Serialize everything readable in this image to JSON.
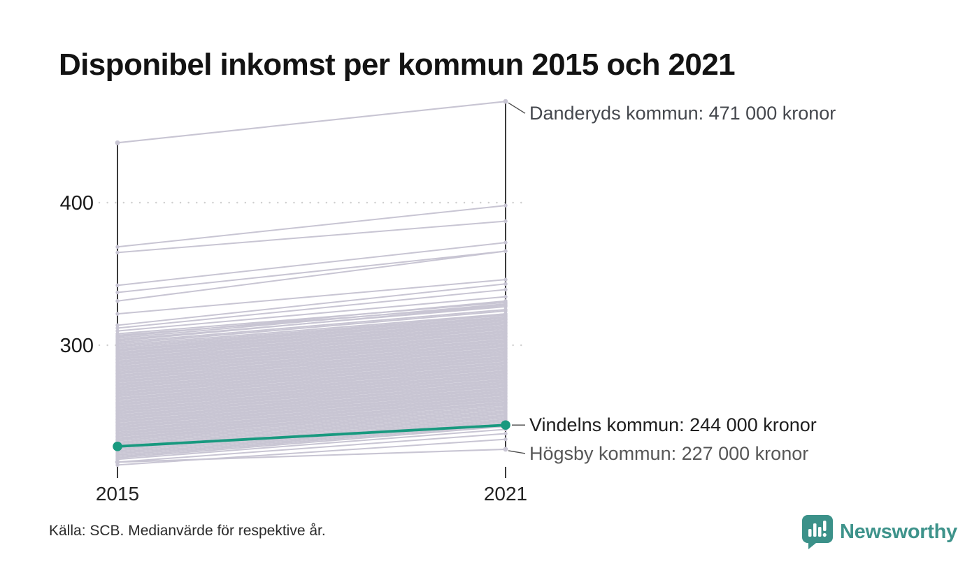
{
  "title": "Disponibel inkomst per kommun 2015 och 2021",
  "source": "Källa: SCB. Medianvärde för respektive år.",
  "logo": {
    "text": "Newsworthy",
    "icon": "newsworthy-bubble-bar-chart-icon",
    "color": "#3e938b"
  },
  "chart_data": {
    "type": "slope",
    "title": "Disponibel inkomst per kommun 2015 och 2021",
    "x_categories": [
      "2015",
      "2021"
    ],
    "y_gridlines": [
      {
        "value": 400,
        "label": "400"
      },
      {
        "value": 300,
        "label": "300"
      }
    ],
    "grid": "dotted-horizontal",
    "legend": "none",
    "colors": {
      "muted_line": "#c8c5d3",
      "highlight": "#18997f",
      "grid": "#cfcfcf",
      "axis": "#1a1a1a",
      "leader": "#4d4d4d"
    },
    "annotated_lines": [
      {
        "name": "danderyd",
        "label": "Danderyds kommun: 471 000 kronor",
        "values": [
          442,
          471
        ],
        "highlight": false,
        "color": "#c8c5d3",
        "label_color": "#45484e"
      },
      {
        "name": "vindeln",
        "label": "Vindelns kommun: 244 000 kronor",
        "values": [
          229,
          244
        ],
        "highlight": true,
        "color": "#18997f",
        "label_color": "#1f1f1f"
      },
      {
        "name": "hogsby",
        "label": "Högsby kommun: 227 000 kronor",
        "values": [
          218,
          227
        ],
        "highlight": false,
        "color": "#c8c5d3",
        "label_color": "#575757"
      }
    ],
    "background_lines": [
      [
        369,
        398
      ],
      [
        365,
        387
      ],
      [
        342,
        372
      ],
      [
        337,
        366
      ],
      [
        331,
        366
      ],
      [
        322,
        346
      ],
      [
        314,
        343
      ],
      [
        312,
        339
      ],
      [
        310,
        334
      ],
      [
        308,
        330
      ],
      [
        307,
        328
      ],
      [
        306,
        331
      ],
      [
        305,
        329
      ],
      [
        304,
        327
      ],
      [
        303,
        328
      ],
      [
        302,
        325
      ],
      [
        301,
        324
      ],
      [
        300,
        322
      ],
      [
        299,
        321
      ],
      [
        298,
        320
      ],
      [
        297,
        319
      ],
      [
        296,
        318
      ],
      [
        296,
        322
      ],
      [
        295,
        317
      ],
      [
        294,
        316
      ],
      [
        294,
        320
      ],
      [
        293,
        315
      ],
      [
        292,
        314
      ],
      [
        292,
        318
      ],
      [
        291,
        313
      ],
      [
        290,
        312
      ],
      [
        290,
        316
      ],
      [
        289,
        311
      ],
      [
        288,
        310
      ],
      [
        288,
        314
      ],
      [
        287,
        309
      ],
      [
        286,
        308
      ],
      [
        286,
        312
      ],
      [
        285,
        307
      ],
      [
        284,
        306
      ],
      [
        284,
        310
      ],
      [
        283,
        305
      ],
      [
        282,
        304
      ],
      [
        282,
        308
      ],
      [
        281,
        303
      ],
      [
        280,
        302
      ],
      [
        280,
        306
      ],
      [
        279,
        301
      ],
      [
        278,
        300
      ],
      [
        278,
        304
      ],
      [
        277,
        299
      ],
      [
        276,
        298
      ],
      [
        276,
        302
      ],
      [
        275,
        297
      ],
      [
        274,
        296
      ],
      [
        274,
        300
      ],
      [
        273,
        295
      ],
      [
        272,
        294
      ],
      [
        272,
        298
      ],
      [
        271,
        293
      ],
      [
        270,
        292
      ],
      [
        270,
        296
      ],
      [
        269,
        291
      ],
      [
        268,
        290
      ],
      [
        268,
        294
      ],
      [
        267,
        289
      ],
      [
        266,
        288
      ],
      [
        266,
        292
      ],
      [
        265,
        287
      ],
      [
        264,
        286
      ],
      [
        264,
        290
      ],
      [
        263,
        285
      ],
      [
        262,
        284
      ],
      [
        262,
        288
      ],
      [
        261,
        283
      ],
      [
        260,
        282
      ],
      [
        260,
        286
      ],
      [
        259,
        281
      ],
      [
        258,
        280
      ],
      [
        258,
        284
      ],
      [
        257,
        279
      ],
      [
        256,
        278
      ],
      [
        256,
        282
      ],
      [
        255,
        277
      ],
      [
        254,
        276
      ],
      [
        254,
        280
      ],
      [
        253,
        275
      ],
      [
        252,
        274
      ],
      [
        252,
        278
      ],
      [
        251,
        273
      ],
      [
        250,
        272
      ],
      [
        250,
        276
      ],
      [
        249,
        271
      ],
      [
        248,
        270
      ],
      [
        248,
        274
      ],
      [
        247,
        269
      ],
      [
        246,
        268
      ],
      [
        246,
        272
      ],
      [
        245,
        267
      ],
      [
        244,
        266
      ],
      [
        244,
        270
      ],
      [
        243,
        265
      ],
      [
        242,
        264
      ],
      [
        242,
        268
      ],
      [
        241,
        263
      ],
      [
        240,
        262
      ],
      [
        240,
        266
      ],
      [
        239,
        261
      ],
      [
        238,
        260
      ],
      [
        238,
        264
      ],
      [
        237,
        259
      ],
      [
        236,
        258
      ],
      [
        236,
        262
      ],
      [
        235,
        257
      ],
      [
        234,
        256
      ],
      [
        234,
        260
      ],
      [
        233,
        255
      ],
      [
        232,
        254
      ],
      [
        231,
        253
      ],
      [
        230,
        252
      ],
      [
        229,
        251
      ],
      [
        228,
        250
      ],
      [
        227,
        249
      ],
      [
        226,
        248
      ],
      [
        225,
        247
      ],
      [
        224,
        246
      ],
      [
        223,
        245
      ],
      [
        222,
        244
      ],
      [
        221,
        243
      ],
      [
        220,
        241
      ],
      [
        218,
        238
      ],
      [
        216,
        234
      ]
    ]
  }
}
